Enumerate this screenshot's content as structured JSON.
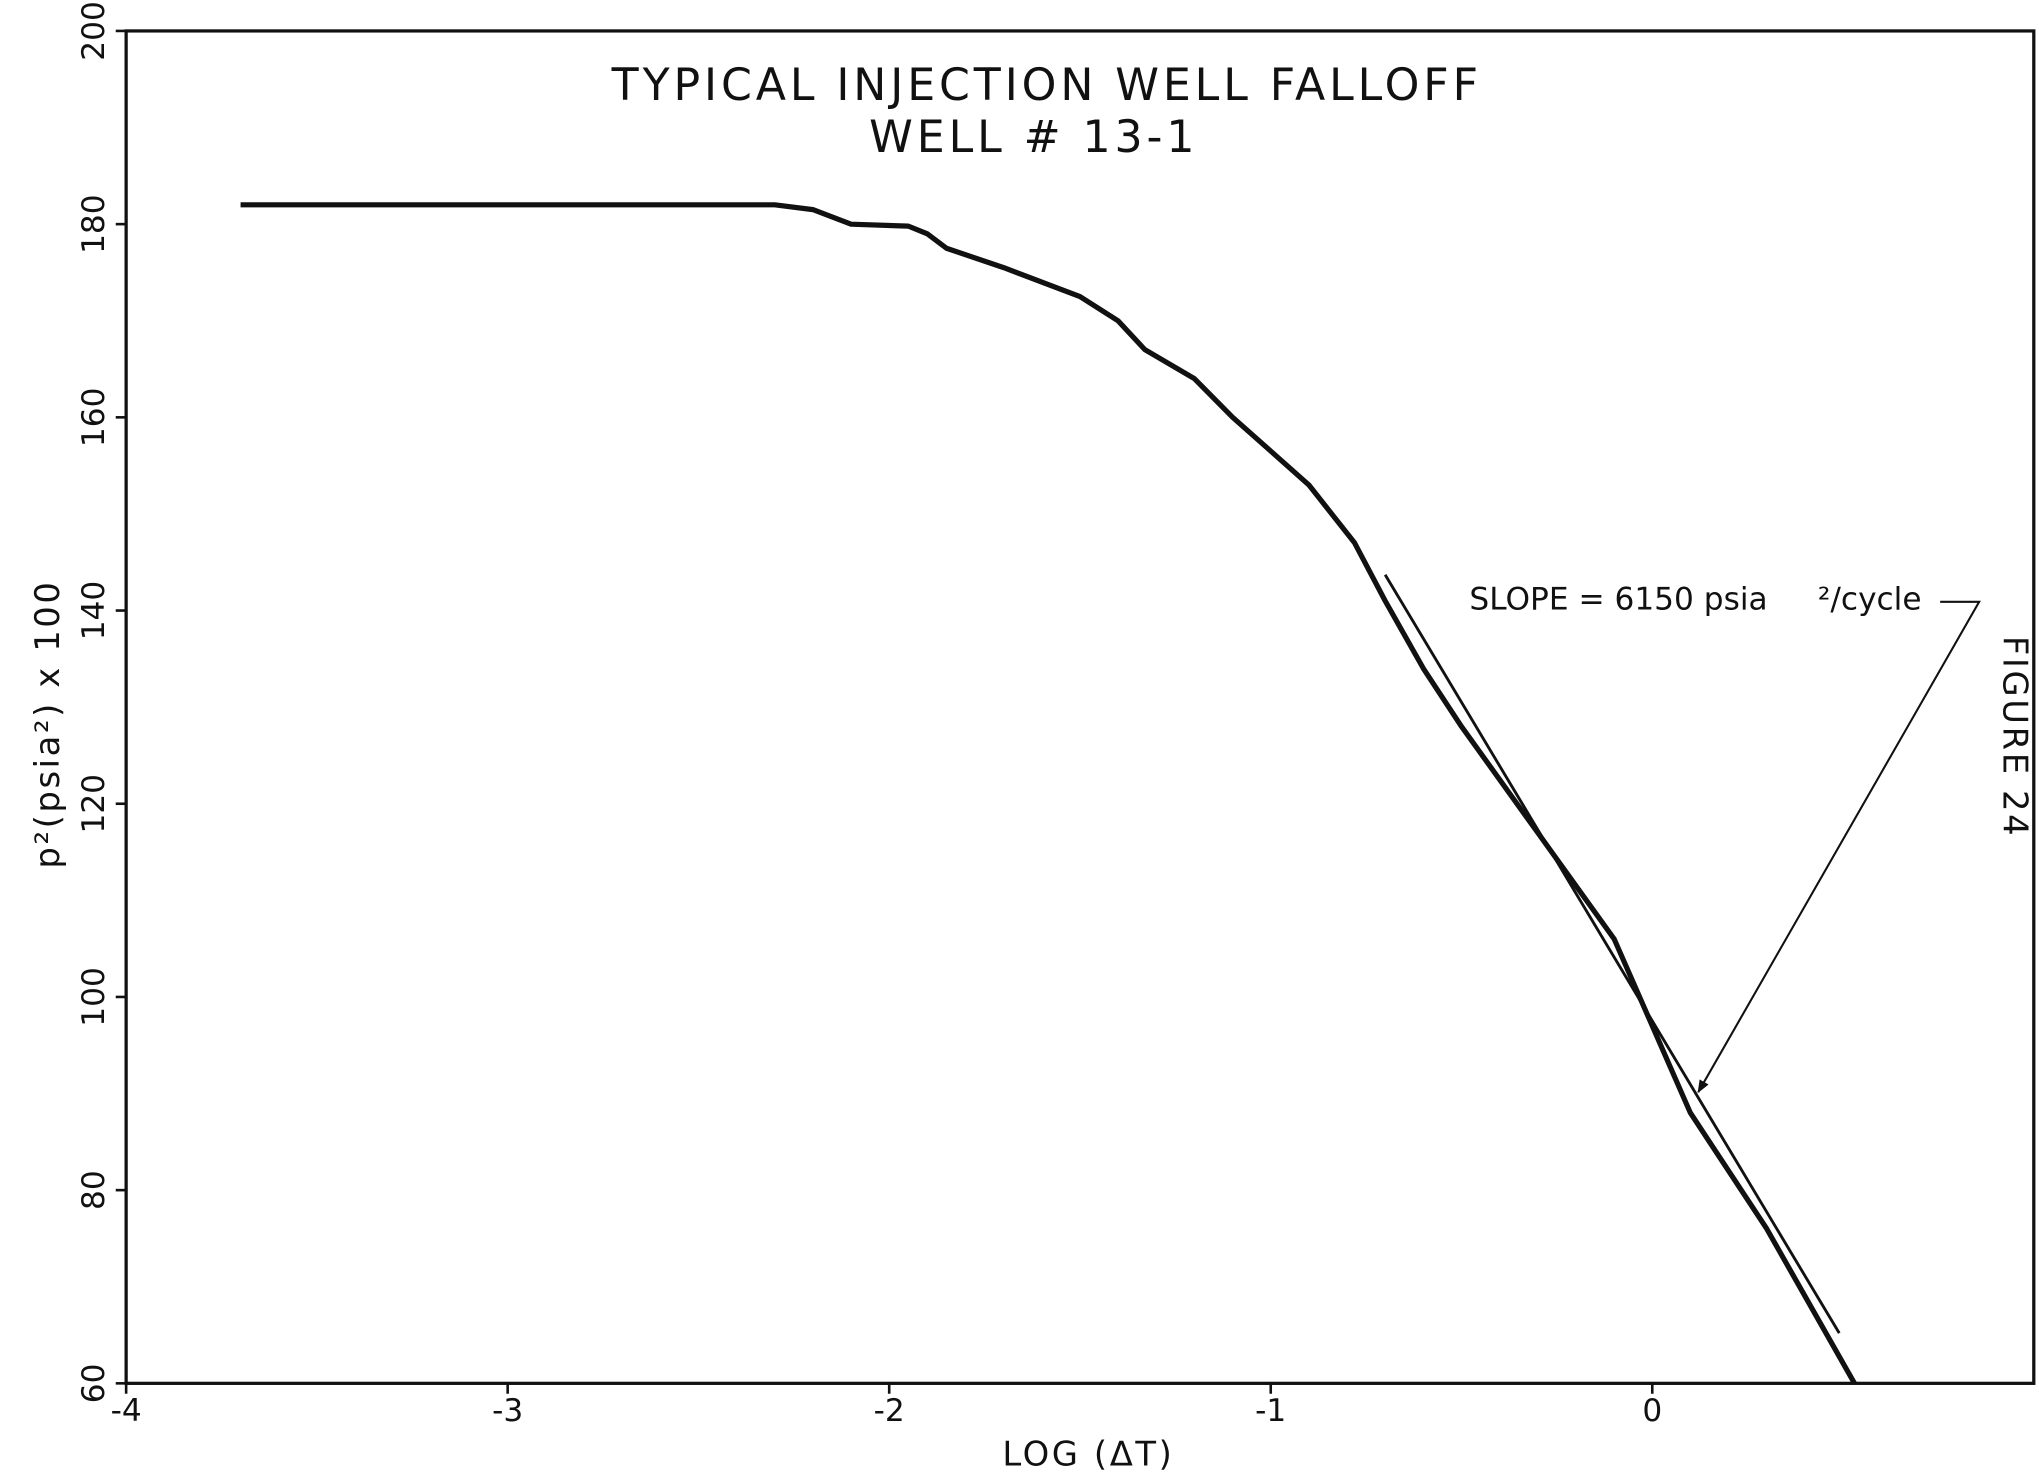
{
  "chart_data": {
    "type": "line",
    "title": "TYPICAL INJECTION WELL FALLOFF",
    "subtitle": "WELL # 13-1",
    "x_label": "LOG (ΔT)",
    "y_label": "p²(psia²) x 100",
    "side_label": "FIGURE 24",
    "annotations": [
      "SLOPE = 6150 psia",
      "²/cycle"
    ],
    "series": [
      {
        "color": "#111111",
        "x": [
          -3.7,
          -2.3,
          -2.2,
          -2.1,
          -1.95,
          -1.9,
          -1.85,
          -1.7,
          -1.5,
          -1.4,
          -1.33,
          -1.2,
          -1.1,
          -0.9,
          -0.78,
          -0.7,
          -0.6,
          -0.5,
          -0.3,
          -0.1,
          0,
          0.1,
          0.3,
          0.53
        ],
        "values": [
          182,
          182,
          181.5,
          180,
          179.8,
          179,
          177.5,
          175.5,
          172.5,
          170,
          167,
          164,
          160,
          153,
          147,
          141,
          134,
          128,
          117,
          106,
          97,
          88,
          76,
          60
        ]
      },
      {
        "color": "#111111",
        "x": [
          -0.7,
          0.49
        ],
        "values": [
          143.7,
          65.2
        ]
      }
    ],
    "xlim": [
      -4,
      1
    ],
    "ylim": [
      60,
      200
    ],
    "xticks": [
      -4,
      -3,
      -2,
      -1,
      0
    ],
    "yticks": [
      60,
      80,
      100,
      120,
      140,
      160,
      180,
      200
    ],
    "grid": false
  }
}
